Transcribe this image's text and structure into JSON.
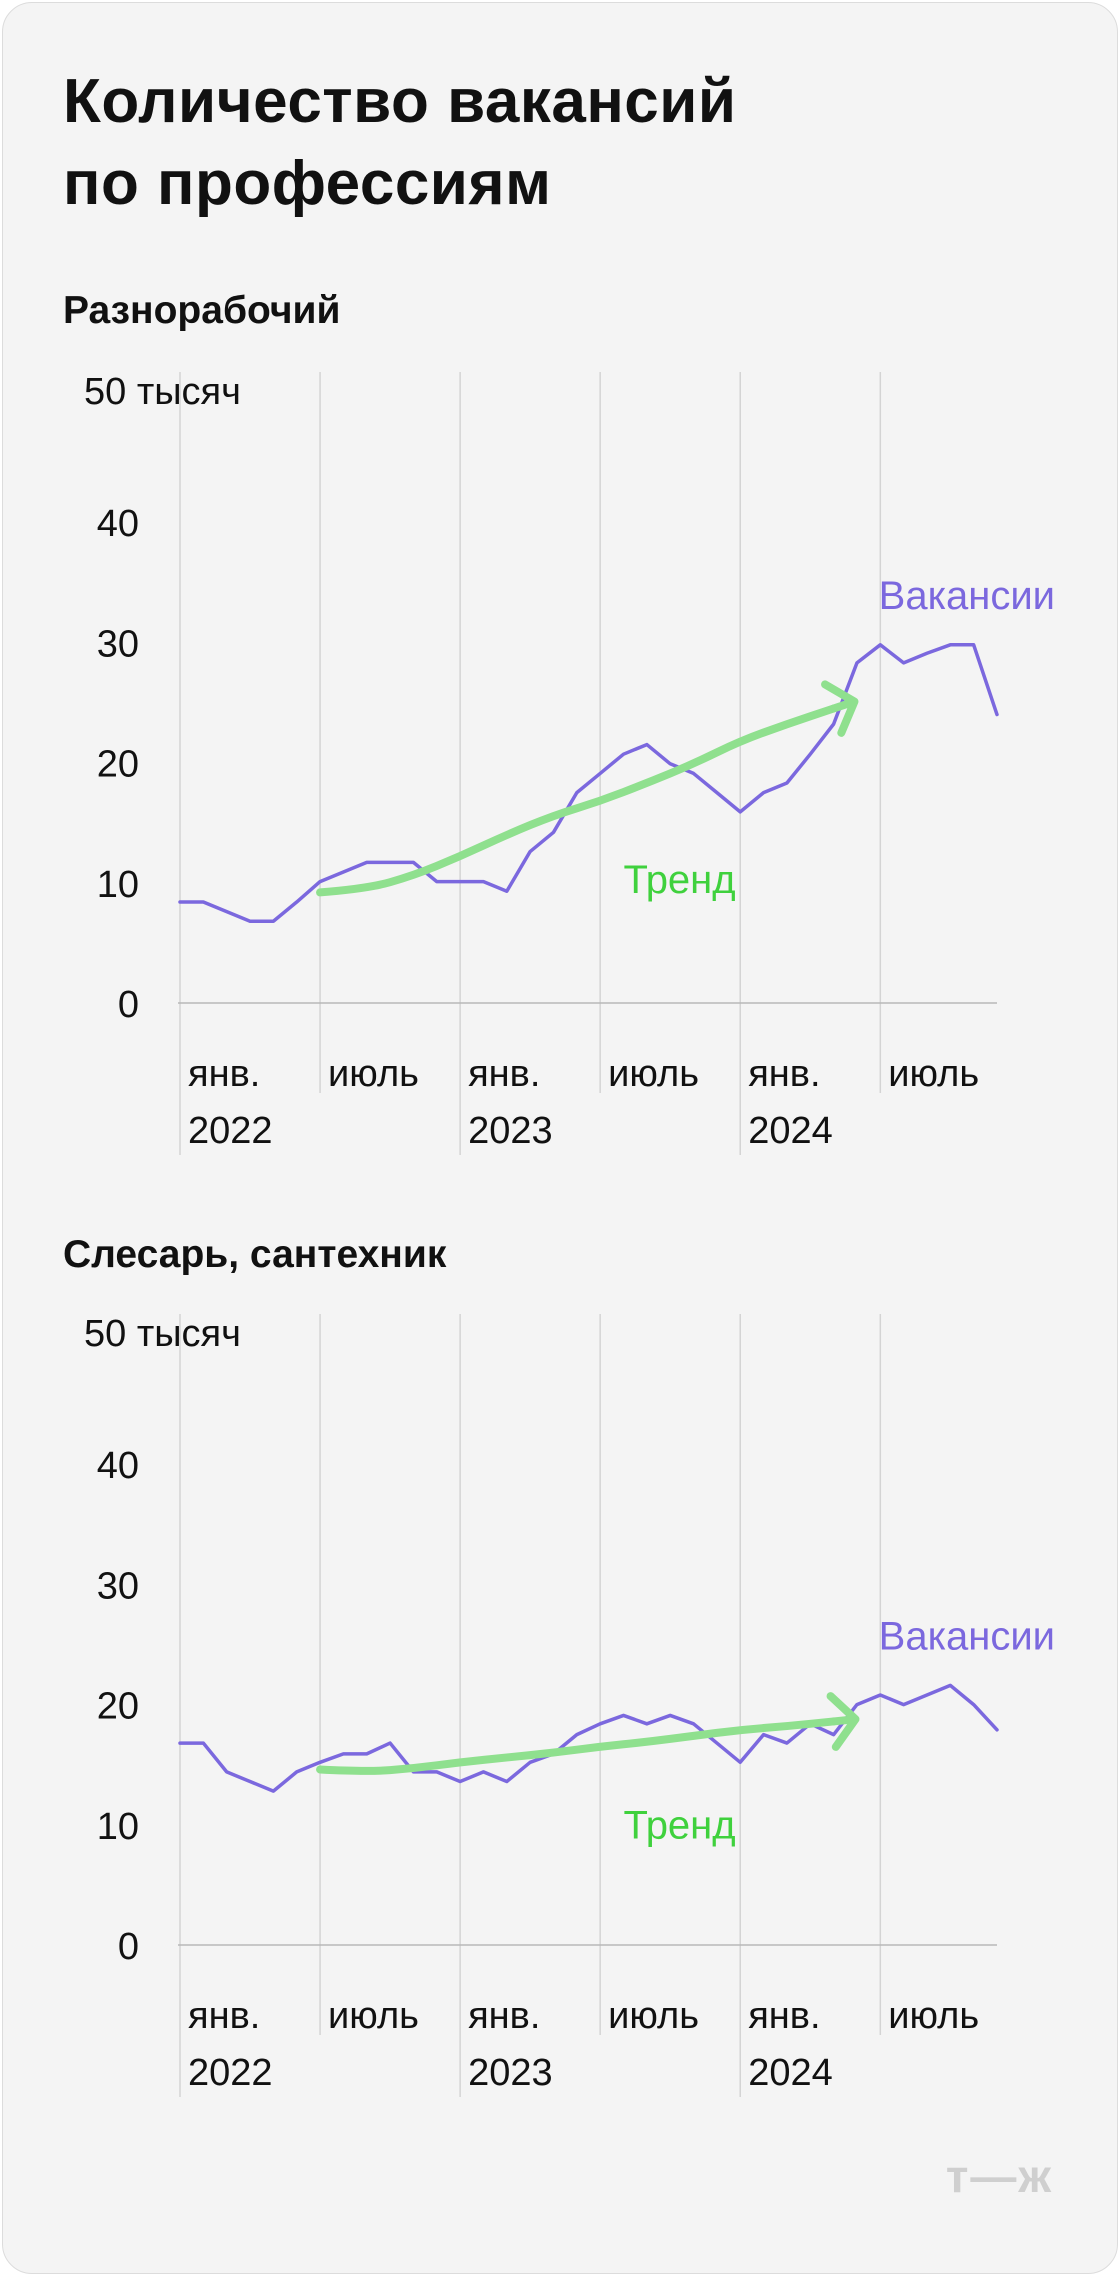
{
  "title": "Количество вакансий\nпо профессиям",
  "logo": "т—ж",
  "colors": {
    "vacancies": "#7b68de",
    "trend": "#8fe08e",
    "trend_label": "#3fd13d",
    "grid": "#d4d4d4",
    "axis": "#b8b8b8",
    "text": "#111111"
  },
  "chart_data": [
    {
      "type": "line",
      "subtitle": "Разнорабочий",
      "y_unit_label": "50 тысяч",
      "yticks": [
        0,
        10,
        20,
        30,
        40,
        50
      ],
      "ylim": [
        0,
        50
      ],
      "xlim": [
        0,
        35
      ],
      "x_ticks": [
        {
          "x": 0,
          "month": "янв.",
          "year": "2022"
        },
        {
          "x": 6,
          "month": "июль",
          "year": ""
        },
        {
          "x": 12,
          "month": "янв.",
          "year": "2023"
        },
        {
          "x": 18,
          "month": "июль",
          "year": ""
        },
        {
          "x": 24,
          "month": "янв.",
          "year": "2024"
        },
        {
          "x": 30,
          "month": "июль",
          "year": ""
        }
      ],
      "grid": "vertical",
      "series": [
        {
          "name": "Вакансии",
          "role": "vacancies",
          "x": [
            0,
            1,
            2,
            3,
            4,
            5,
            6,
            7,
            8,
            9,
            10,
            11,
            12,
            13,
            14,
            15,
            16,
            17,
            18,
            19,
            20,
            21,
            22,
            23,
            24,
            25,
            26,
            27,
            28,
            29,
            30,
            31,
            32,
            33,
            34,
            35
          ],
          "values": [
            8.4,
            8.4,
            7.6,
            6.8,
            6.8,
            8.4,
            10.1,
            10.9,
            11.7,
            11.7,
            11.7,
            10.1,
            10.1,
            10.1,
            9.3,
            12.6,
            14.2,
            17.5,
            19.1,
            20.7,
            21.5,
            19.9,
            19.1,
            17.5,
            15.9,
            17.5,
            18.3,
            20.7,
            23.2,
            28.3,
            29.8,
            28.3,
            29.1,
            29.8,
            29.8,
            24.0
          ]
        },
        {
          "name": "Тренд",
          "role": "trend",
          "arrow": true,
          "x": [
            6,
            8,
            10,
            12,
            14,
            16,
            18,
            20,
            22,
            24,
            26,
            28
          ],
          "values": [
            9.2,
            9.5,
            10.6,
            12.2,
            14.0,
            15.6,
            16.8,
            18.3,
            19.9,
            21.8,
            23.2,
            24.5
          ]
        }
      ]
    },
    {
      "type": "line",
      "subtitle": "Слесарь, сантехник",
      "y_unit_label": "50 тысяч",
      "yticks": [
        0,
        10,
        20,
        30,
        40,
        50
      ],
      "ylim": [
        0,
        50
      ],
      "xlim": [
        0,
        35
      ],
      "x_ticks": [
        {
          "x": 0,
          "month": "янв.",
          "year": "2022"
        },
        {
          "x": 6,
          "month": "июль",
          "year": ""
        },
        {
          "x": 12,
          "month": "янв.",
          "year": "2023"
        },
        {
          "x": 18,
          "month": "июль",
          "year": ""
        },
        {
          "x": 24,
          "month": "янв.",
          "year": "2024"
        },
        {
          "x": 30,
          "month": "июль",
          "year": ""
        }
      ],
      "grid": "vertical",
      "series": [
        {
          "name": "Вакансии",
          "role": "vacancies",
          "x": [
            0,
            1,
            2,
            3,
            4,
            5,
            6,
            7,
            8,
            9,
            10,
            11,
            12,
            13,
            14,
            15,
            16,
            17,
            18,
            19,
            20,
            21,
            22,
            23,
            24,
            25,
            26,
            27,
            28,
            29,
            30,
            31,
            32,
            33,
            34,
            35
          ],
          "values": [
            16.8,
            16.8,
            14.4,
            13.6,
            12.8,
            14.4,
            15.2,
            15.9,
            15.9,
            16.8,
            14.4,
            14.4,
            13.6,
            14.4,
            13.6,
            15.2,
            15.9,
            17.5,
            18.4,
            19.1,
            18.4,
            19.1,
            18.4,
            16.8,
            15.2,
            17.5,
            16.8,
            18.4,
            17.5,
            20.0,
            20.8,
            20.0,
            20.8,
            21.6,
            20.0,
            17.9
          ]
        },
        {
          "name": "Тренд",
          "role": "trend",
          "arrow": true,
          "x": [
            6,
            8,
            10,
            12,
            14,
            16,
            18,
            20,
            22,
            24,
            26,
            28
          ],
          "values": [
            14.6,
            14.4,
            14.7,
            15.2,
            15.6,
            16.0,
            16.5,
            16.9,
            17.4,
            17.9,
            18.2,
            18.6
          ]
        }
      ]
    }
  ]
}
